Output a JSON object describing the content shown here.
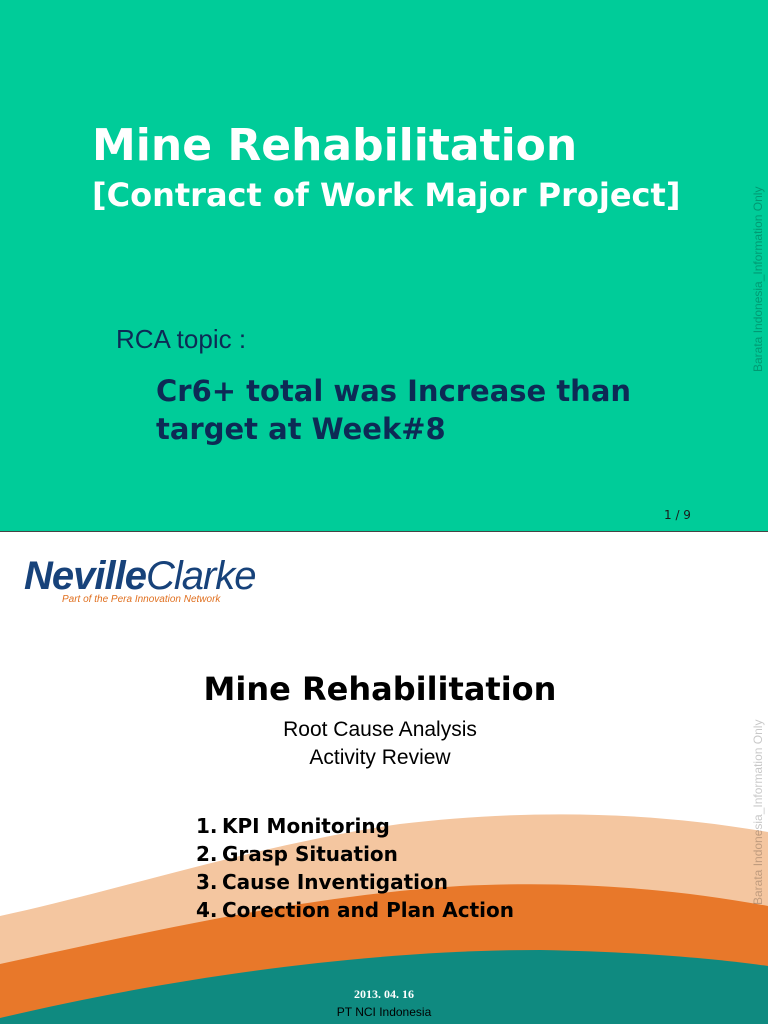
{
  "slide1": {
    "title": "Mine Rehabilitation",
    "subtitle": "[Contract of Work Major Project]",
    "rca_label": "RCA topic :",
    "rca_topic": "Cr6+ total was Increase than target at Week#8",
    "page_number": "1 / 9",
    "watermark": "Barata Indonesia_Information Only",
    "background_color": "#00cc99"
  },
  "slide2": {
    "logo": {
      "name_part1": "Neville",
      "name_part2": "Clarke",
      "tagline": "Part of the Pera Innovation Network"
    },
    "title": "Mine Rehabilitation",
    "subtitle_line1": "Root Cause Analysis",
    "subtitle_line2": "Activity Review",
    "agenda": [
      {
        "num": "1.",
        "label": "KPI Monitoring"
      },
      {
        "num": "2.",
        "label": "Grasp Situation"
      },
      {
        "num": "3.",
        "label": "Cause Inventigation"
      },
      {
        "num": "4.",
        "label": "Corection and Plan Action"
      }
    ],
    "date": "2013. 04. 16",
    "organization": "PT NCI Indonesia",
    "watermark": "Barata Indonesia_Information Only",
    "colors": {
      "peach": "#f4c6a0",
      "orange": "#e8782a",
      "teal": "#0f8a80",
      "logo_blue": "#17427a"
    }
  }
}
